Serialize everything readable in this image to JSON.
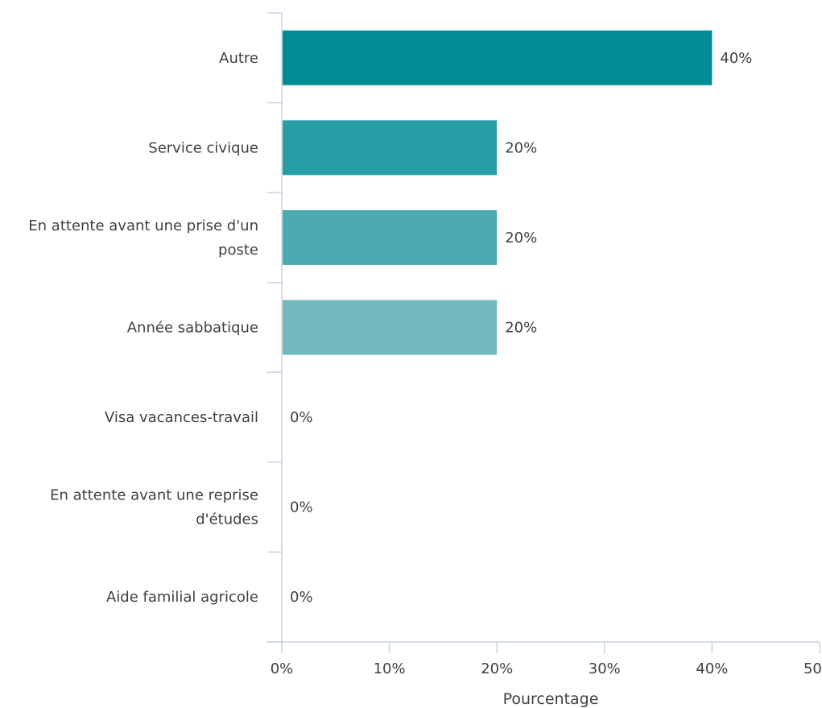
{
  "chart_data": {
    "type": "bar",
    "orientation": "horizontal",
    "categories": [
      [
        "Autre"
      ],
      [
        "Service civique"
      ],
      [
        "En attente avant une prise d'un",
        "poste"
      ],
      [
        "Année sabbatique"
      ],
      [
        "Visa vacances-travail"
      ],
      [
        "En attente avant une reprise",
        "d'études"
      ],
      [
        "Aide familial agricole"
      ]
    ],
    "values": [
      40,
      20,
      20,
      20,
      0,
      0,
      0
    ],
    "value_labels": [
      "40%",
      "20%",
      "20%",
      "20%",
      "0%",
      "0%",
      "0%"
    ],
    "colors": [
      "#008c95",
      "#269ea6",
      "#4caab1",
      "#73b8bd",
      "#73b8bd",
      "#73b8bd",
      "#73b8bd"
    ],
    "xlabel": "Pourcentage",
    "ylabel": "",
    "xlim": [
      0,
      50
    ],
    "xticks": [
      0,
      10,
      20,
      30,
      40,
      50
    ],
    "xtick_labels": [
      "0%",
      "10%",
      "20%",
      "30%",
      "40%",
      "50%"
    ],
    "grid": false,
    "axis_color": "#c7d3e3"
  }
}
